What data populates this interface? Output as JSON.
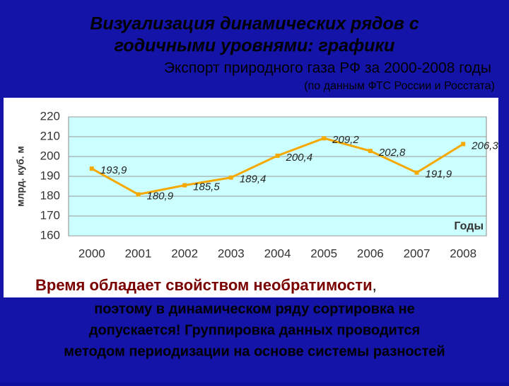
{
  "slide": {
    "title_lines": [
      "Визуализация динамических рядов с",
      "годичными уровнями: графики"
    ],
    "note_lead": "Время обладает свойством необратимости",
    "note_comma": ",",
    "note_lines": [
      "поэтому в динамическом ряду сортировка не",
      "допускается! Группировка данных проводится",
      "методом периодизации на основе системы разностей"
    ]
  },
  "chart_data": {
    "type": "line",
    "title": "Экспорт природного газа РФ за 2000-2008 годы",
    "subtitle": "(по данным ФТС России и Росстата)",
    "categories": [
      "2000",
      "2001",
      "2002",
      "2003",
      "2004",
      "2005",
      "2006",
      "2007",
      "2008"
    ],
    "values": [
      193.9,
      180.9,
      185.5,
      189.4,
      200.4,
      209.2,
      202.8,
      191.9,
      206.3
    ],
    "value_labels": [
      "193,9",
      "180,9",
      "185,5",
      "189,4",
      "200,4",
      "209,2",
      "202,8",
      "191,9",
      "206,3"
    ],
    "color": "#f5a800",
    "ylabel": "млрд. куб. м",
    "xlabel": "Годы",
    "ylim": [
      160,
      220
    ],
    "yticks": [
      160,
      170,
      180,
      190,
      200,
      210,
      220
    ],
    "grid": true
  }
}
